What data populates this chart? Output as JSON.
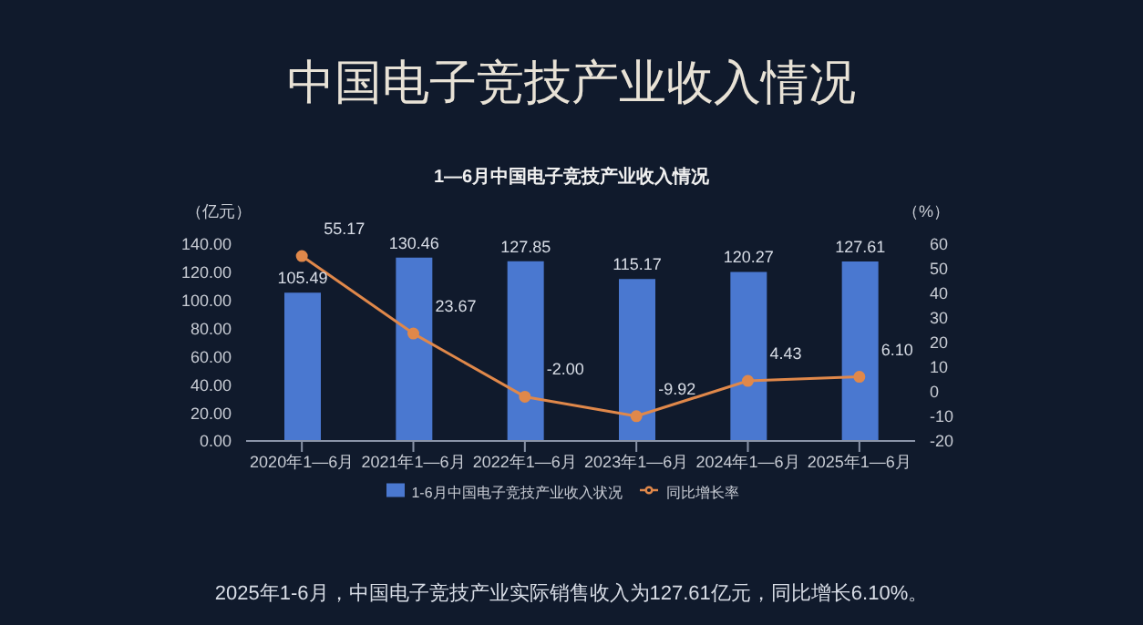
{
  "chart_data": {
    "type": "bar",
    "title": "中国电子竞技产业收入情况",
    "subtitle": "1—6月中国电子竞技产业收入情况",
    "ylabel": "（亿元）",
    "y2label": "（%）",
    "categories": [
      "2020年1—6月",
      "2021年1—6月",
      "2022年1—6月",
      "2023年1—6月",
      "2024年1—6月",
      "2025年1—6月"
    ],
    "series": [
      {
        "name": "1-6月中国电子竞技产业收入状况",
        "color": "#4a78d0",
        "values": [
          105.49,
          130.46,
          127.85,
          115.17,
          120.27,
          127.61
        ],
        "value_labels": [
          "105.49",
          "130.46",
          "127.85",
          "115.17",
          "120.27",
          "127.61"
        ]
      },
      {
        "name": "同比增长率",
        "type": "line",
        "axis": "y2",
        "color": "#e0884a",
        "marker": "circle",
        "values": [
          55.17,
          23.67,
          -2.0,
          -9.92,
          4.43,
          6.1
        ],
        "value_labels": [
          "55.17",
          "23.67",
          "-2.00",
          "-9.92",
          "4.43",
          "6.10"
        ]
      }
    ],
    "ylim": [
      0,
      140
    ],
    "yticks": [
      {
        "value": 0,
        "label": "0.00"
      },
      {
        "value": 20,
        "label": "20.00"
      },
      {
        "value": 40,
        "label": "40.00"
      },
      {
        "value": 60,
        "label": "60.00"
      },
      {
        "value": 80,
        "label": "80.00"
      },
      {
        "value": 100,
        "label": "100.00"
      },
      {
        "value": 120,
        "label": "120.00"
      },
      {
        "value": 140,
        "label": "140.00"
      }
    ],
    "y2lim": [
      -20,
      60
    ],
    "y2ticks": [
      -20,
      -10,
      0,
      10,
      20,
      30,
      40,
      50,
      60
    ],
    "grid": false,
    "legend": "bottom",
    "annotations": [
      "2025年1-6月，中国电子竞技产业实际销售收入为127.61亿元，同比增长6.10%。"
    ]
  }
}
